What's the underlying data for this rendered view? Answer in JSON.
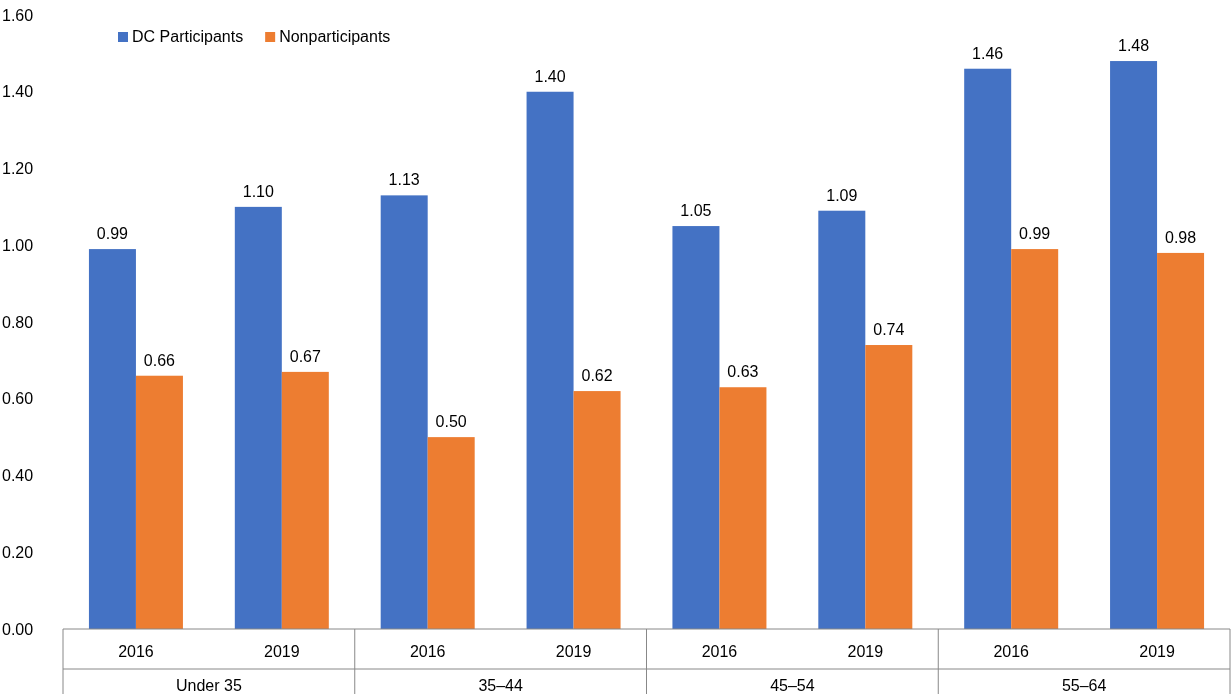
{
  "chart_data": {
    "type": "bar",
    "categories": [
      "2016",
      "2019",
      "2016",
      "2019",
      "2016",
      "2019",
      "2016",
      "2019"
    ],
    "series": [
      {
        "name": "DC Participants",
        "color": "#4472c4",
        "values": [
          0.99,
          1.1,
          1.13,
          1.4,
          1.05,
          1.09,
          1.46,
          1.48
        ],
        "value_labels": [
          "0.99",
          "1.10",
          "1.13",
          "1.40",
          "1.05",
          "1.09",
          "1.46",
          "1.48"
        ]
      },
      {
        "name": "Nonparticipants",
        "color": "#ed7d31",
        "values": [
          0.66,
          0.67,
          0.5,
          0.62,
          0.63,
          0.74,
          0.99,
          0.98
        ],
        "value_labels": [
          "0.66",
          "0.67",
          "0.50",
          "0.62",
          "0.63",
          "0.74",
          "0.99",
          "0.98"
        ]
      }
    ],
    "ylim": [
      0,
      1.6
    ],
    "yticks": [
      {
        "value": 0,
        "label": "0.00"
      },
      {
        "value": 0.2,
        "label": "0.20"
      },
      {
        "value": 0.4,
        "label": "0.40"
      },
      {
        "value": 0.6,
        "label": "0.60"
      },
      {
        "value": 0.8,
        "label": "0.80"
      },
      {
        "value": 1,
        "label": "1.00"
      },
      {
        "value": 1.2,
        "label": "1.20"
      },
      {
        "value": 1.4,
        "label": "1.40"
      },
      {
        "value": 1.6,
        "label": "1.60"
      }
    ],
    "annotations": [
      "Under 35",
      "35–44",
      "45–54",
      "55–64"
    ],
    "grid": false,
    "legend": "top left"
  }
}
